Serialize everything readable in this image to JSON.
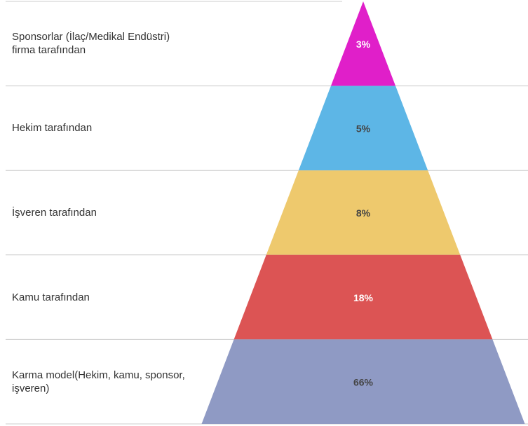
{
  "chart_data": {
    "type": "pyramid",
    "categories": [
      "Sponsorlar (İlaç/Medikal Endüstri) firma tarafından",
      "Hekim tarafından",
      "İşveren tarafından",
      "Kamu tarafından",
      "Karma model(Hekim, kamu, sponsor, işveren)"
    ],
    "values": [
      3,
      5,
      8,
      18,
      66
    ],
    "value_labels": [
      "3%",
      "5%",
      "8%",
      "18%",
      "66%"
    ],
    "colors": [
      "#e01fc9",
      "#5db6e6",
      "#eec96d",
      "#dc5454",
      "#8f9ac4"
    ],
    "label_colors": [
      "#ffffff",
      "#444444",
      "#444444",
      "#ffffff",
      "#444444"
    ]
  }
}
